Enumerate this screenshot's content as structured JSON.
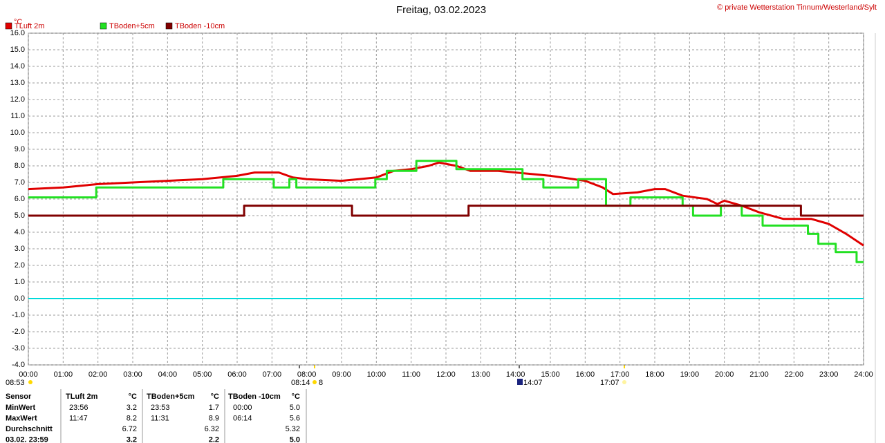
{
  "chart_data": {
    "type": "line",
    "title": "Freitag, 03.02.2023",
    "copyright": "© private Wetterstation Tinnum/Westerland/Sylt",
    "y_label": "°C",
    "grid": true,
    "xlim": [
      0,
      24
    ],
    "xticks": [
      {
        "value": 0,
        "label": "00:00"
      },
      {
        "value": 1,
        "label": "01:00"
      },
      {
        "value": 2,
        "label": "02:00"
      },
      {
        "value": 3,
        "label": "03:00"
      },
      {
        "value": 4,
        "label": "04:00"
      },
      {
        "value": 5,
        "label": "05:00"
      },
      {
        "value": 6,
        "label": "06:00"
      },
      {
        "value": 7,
        "label": "07:00"
      },
      {
        "value": 8,
        "label": "08:00"
      },
      {
        "value": 9,
        "label": "09:00"
      },
      {
        "value": 10,
        "label": "10:00"
      },
      {
        "value": 11,
        "label": "11:00"
      },
      {
        "value": 12,
        "label": "12:00"
      },
      {
        "value": 13,
        "label": "13:00"
      },
      {
        "value": 14,
        "label": "14:00"
      },
      {
        "value": 15,
        "label": "15:00"
      },
      {
        "value": 16,
        "label": "16:00"
      },
      {
        "value": 17,
        "label": "17:00"
      },
      {
        "value": 18,
        "label": "18:00"
      },
      {
        "value": 19,
        "label": "19:00"
      },
      {
        "value": 20,
        "label": "20:00"
      },
      {
        "value": 21,
        "label": "21:00"
      },
      {
        "value": 22,
        "label": "22:00"
      },
      {
        "value": 23,
        "label": "23:00"
      },
      {
        "value": 24,
        "label": "24:00"
      }
    ],
    "ylim": [
      -4,
      16
    ],
    "yticks": [
      {
        "value": 16,
        "label": "16.0"
      },
      {
        "value": 15,
        "label": "15.0"
      },
      {
        "value": 14,
        "label": "14.0"
      },
      {
        "value": 13,
        "label": "13.0"
      },
      {
        "value": 12,
        "label": "12.0"
      },
      {
        "value": 11,
        "label": "11.0"
      },
      {
        "value": 10,
        "label": "10.0"
      },
      {
        "value": 9,
        "label": "9.0"
      },
      {
        "value": 8,
        "label": "8.0"
      },
      {
        "value": 7,
        "label": "7.0"
      },
      {
        "value": 6,
        "label": "6.0"
      },
      {
        "value": 5,
        "label": "5.0"
      },
      {
        "value": 4,
        "label": "4.0"
      },
      {
        "value": 3,
        "label": "3.0"
      },
      {
        "value": 2,
        "label": "2.0"
      },
      {
        "value": 1,
        "label": "1.0"
      },
      {
        "value": 0,
        "label": "0.0"
      },
      {
        "value": -1,
        "label": "-1.0"
      },
      {
        "value": -2,
        "label": "-2.0"
      },
      {
        "value": -3,
        "label": "-3.0"
      },
      {
        "value": -4,
        "label": "-4.0"
      }
    ],
    "zero_line": {
      "value": 0,
      "color": "#00dada"
    },
    "series": [
      {
        "name": "TLuft 2m",
        "color": "#e00000",
        "x": [
          0,
          1,
          2,
          3,
          4,
          5,
          6,
          6.5,
          7.2,
          7.6,
          8,
          9,
          9.5,
          10,
          10.5,
          11,
          11.5,
          11.8,
          12.3,
          12.7,
          13.5,
          14,
          15,
          16,
          16.5,
          16.8,
          17.5,
          18,
          18.3,
          18.8,
          19.5,
          19.8,
          20,
          20.5,
          21,
          21.7,
          22.5,
          23,
          23.5,
          24
        ],
        "values": [
          6.6,
          6.7,
          6.9,
          7.0,
          7.1,
          7.2,
          7.4,
          7.6,
          7.6,
          7.3,
          7.2,
          7.1,
          7.2,
          7.3,
          7.7,
          7.8,
          8.0,
          8.2,
          8.0,
          7.7,
          7.7,
          7.6,
          7.4,
          7.1,
          6.7,
          6.3,
          6.4,
          6.6,
          6.6,
          6.2,
          6.0,
          5.7,
          5.9,
          5.6,
          5.2,
          4.8,
          4.8,
          4.5,
          3.9,
          3.2
        ]
      },
      {
        "name": "TBoden+5cm",
        "color": "#22e022",
        "x": [
          0,
          1.95,
          1.95,
          5.6,
          5.6,
          7.05,
          7.05,
          7.5,
          7.5,
          7.7,
          7.7,
          9.97,
          9.97,
          10.3,
          10.3,
          11.15,
          11.15,
          12.3,
          12.3,
          14.2,
          14.2,
          14.8,
          14.8,
          15.8,
          15.8,
          16.6,
          16.6,
          17.3,
          17.3,
          18.8,
          18.8,
          19.1,
          19.1,
          19.9,
          19.9,
          20.5,
          20.5,
          21.1,
          21.1,
          22.4,
          22.4,
          22.7,
          22.7,
          23.2,
          23.2,
          23.8,
          23.8,
          24
        ],
        "values": [
          6.1,
          6.1,
          6.7,
          6.7,
          7.2,
          7.2,
          6.7,
          6.7,
          7.2,
          7.2,
          6.7,
          6.7,
          7.2,
          7.2,
          7.7,
          7.7,
          8.3,
          8.3,
          7.8,
          7.8,
          7.2,
          7.2,
          6.7,
          6.7,
          7.2,
          7.2,
          5.6,
          5.6,
          6.1,
          6.1,
          5.6,
          5.6,
          5.0,
          5.0,
          5.6,
          5.6,
          5.0,
          5.0,
          4.4,
          4.4,
          3.9,
          3.9,
          3.3,
          3.3,
          2.8,
          2.8,
          2.2,
          2.2
        ]
      },
      {
        "name": "TBoden -10cm",
        "color": "#800000",
        "x": [
          0,
          6.2,
          6.2,
          9.3,
          9.3,
          12.65,
          12.65,
          22.2,
          22.2,
          24
        ],
        "values": [
          5.0,
          5.0,
          5.6,
          5.6,
          5.0,
          5.0,
          5.6,
          5.6,
          5.0,
          5.0
        ]
      }
    ],
    "sun_annotations": [
      "08:53",
      "08:14",
      "8",
      "14:07",
      "17:07"
    ]
  },
  "table": {
    "header": [
      "Sensor",
      "TLuft 2m",
      "°C",
      "TBoden+5cm",
      "°C",
      "TBoden -10cm",
      "°C"
    ],
    "rows": [
      {
        "label": "MinWert",
        "cells": [
          [
            "23:56",
            "3.2"
          ],
          [
            "23:53",
            "1.7"
          ],
          [
            "00:00",
            "5.0"
          ]
        ]
      },
      {
        "label": "MaxWert",
        "cells": [
          [
            "11:47",
            "8.2"
          ],
          [
            "11:31",
            "8.9"
          ],
          [
            "06:14",
            "5.6"
          ]
        ]
      },
      {
        "label": "Durchschnitt",
        "cells": [
          [
            "6.72"
          ],
          [
            "6.32"
          ],
          [
            "5.32"
          ]
        ]
      },
      {
        "label": "03.02. 23:59",
        "cells": [
          [
            "3.2"
          ],
          [
            "2.2"
          ],
          [
            "5.0"
          ]
        ]
      }
    ]
  }
}
